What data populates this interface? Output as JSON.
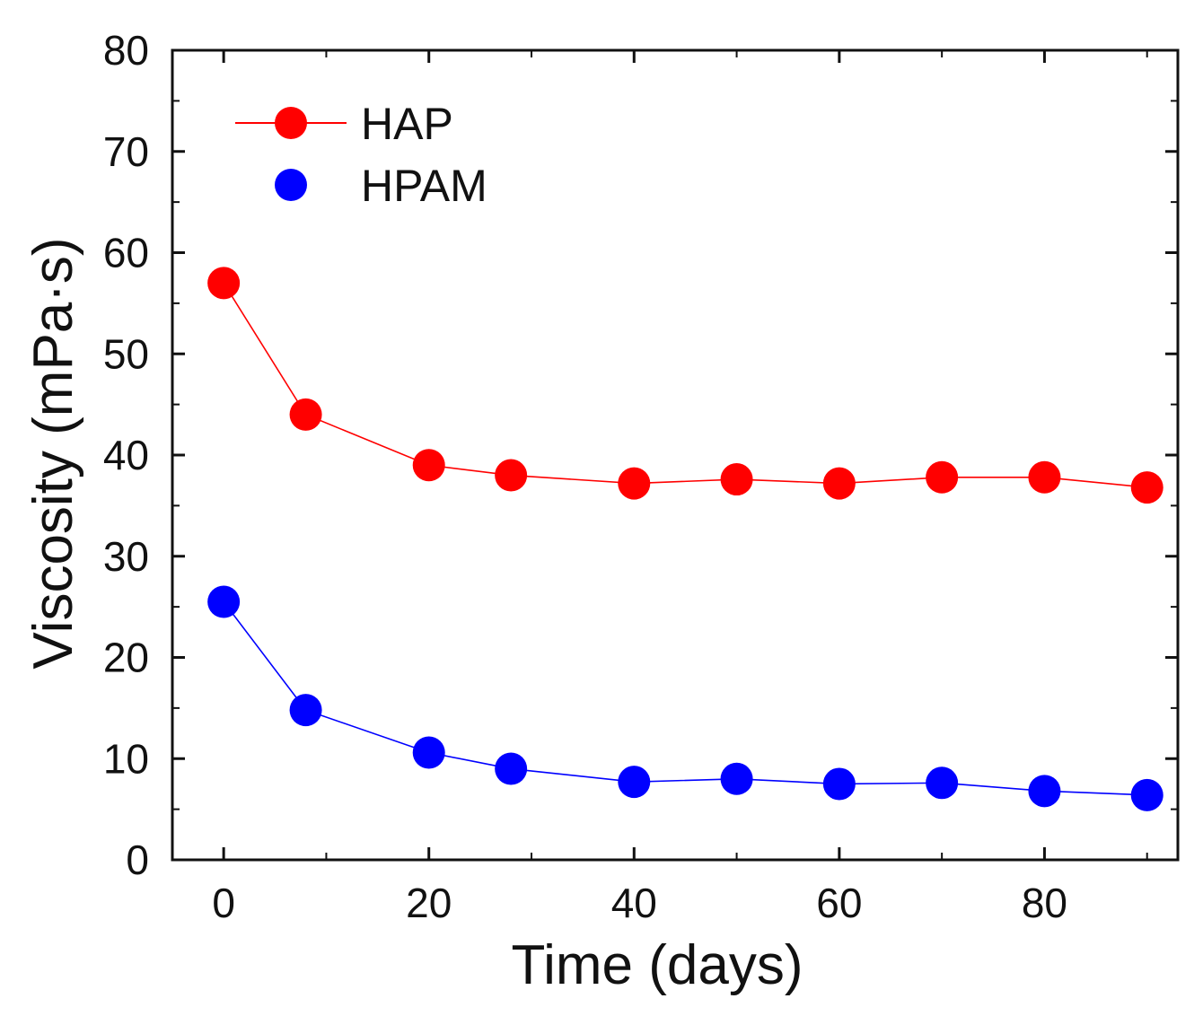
{
  "chart_data": {
    "type": "line",
    "title": "",
    "xlabel": "Time (days)",
    "ylabel": "Viscosity (mPa·s)",
    "xlim": [
      -5,
      93
    ],
    "ylim": [
      0,
      80
    ],
    "xticks": [
      0,
      20,
      40,
      60,
      80
    ],
    "yticks": [
      0,
      10,
      20,
      30,
      40,
      50,
      60,
      70,
      80
    ],
    "grid": false,
    "legend_position": "top-left",
    "x": [
      0,
      8,
      20,
      28,
      40,
      50,
      60,
      70,
      80,
      90
    ],
    "series": [
      {
        "name": "HAP",
        "color": "#ff0000",
        "values": [
          57,
          44,
          39,
          38,
          37.2,
          37.6,
          37.2,
          37.8,
          37.8,
          36.8
        ]
      },
      {
        "name": "HPAM",
        "color": "#0000ff",
        "values": [
          25.5,
          14.8,
          10.6,
          9,
          7.7,
          8,
          7.5,
          7.6,
          6.8,
          6.4
        ]
      }
    ]
  }
}
